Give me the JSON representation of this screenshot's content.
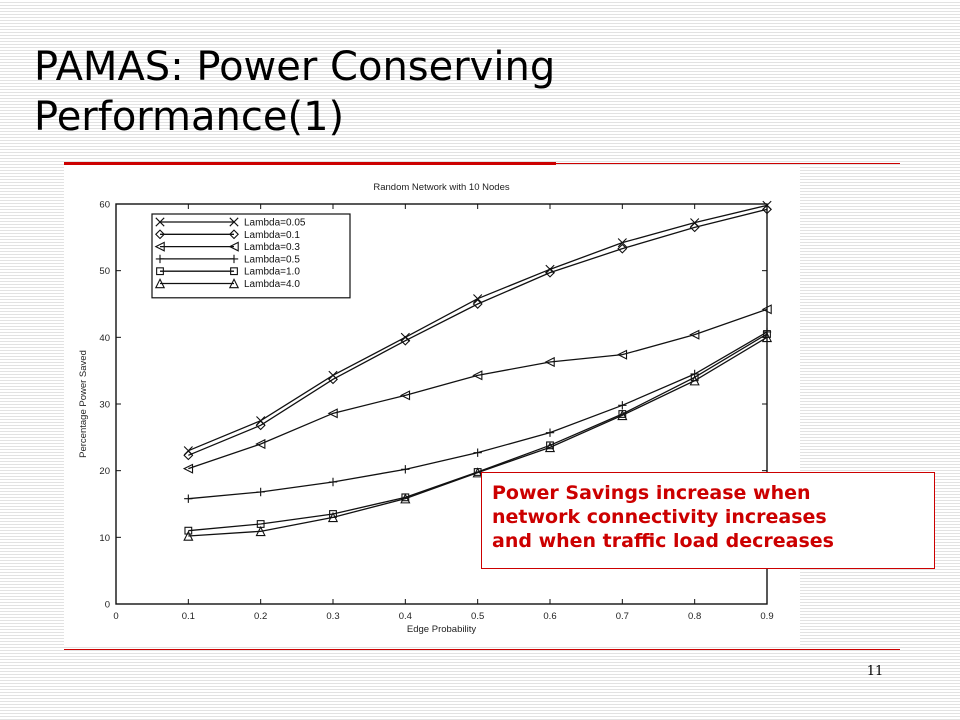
{
  "slide": {
    "title_line1": "PAMAS: Power Conserving",
    "title_line2": "Performance(1)",
    "page_number": "11",
    "callout": {
      "line1": "Power Savings increase when",
      "line2": "network connectivity increases",
      "line3": "and when traffic load decreases",
      "color": "#cc0000"
    },
    "rule_color": "#cc0000"
  },
  "chart_data": {
    "type": "line",
    "title": "Random Network with 10 Nodes",
    "xlabel": "Edge Probability",
    "ylabel": "Percentage Power Saved",
    "xlim": [
      0,
      0.9
    ],
    "ylim": [
      0,
      60
    ],
    "xticks": [
      "0",
      "0.1",
      "0.2",
      "0.3",
      "0.4",
      "0.5",
      "0.6",
      "0.7",
      "0.8",
      "0.9"
    ],
    "yticks": [
      "0",
      "10",
      "20",
      "30",
      "40",
      "50",
      "60"
    ],
    "grid": false,
    "legend_position": "top-left",
    "x": [
      0.1,
      0.2,
      0.3,
      0.4,
      0.5,
      0.6,
      0.7,
      0.8,
      0.9
    ],
    "series": [
      {
        "name": "Lambda=0.05",
        "marker": "x",
        "values": [
          23,
          27.5,
          34.3,
          40,
          45.8,
          50.2,
          54.2,
          57.2,
          59.8
        ]
      },
      {
        "name": "Lambda=0.1",
        "marker": "diamond",
        "values": [
          22.3,
          26.8,
          33.7,
          39.5,
          45,
          49.7,
          53.3,
          56.5,
          59.2
        ]
      },
      {
        "name": "Lambda=0.3",
        "marker": "triangle-left",
        "values": [
          20.3,
          24,
          28.6,
          31.3,
          34.3,
          36.3,
          37.4,
          40.4,
          44.2
        ]
      },
      {
        "name": "Lambda=0.5",
        "marker": "plus",
        "values": [
          15.8,
          16.8,
          18.3,
          20.2,
          22.7,
          25.7,
          29.8,
          34.5,
          40.8
        ]
      },
      {
        "name": "Lambda=1.0",
        "marker": "square",
        "values": [
          11,
          12,
          13.5,
          16,
          19.8,
          23.8,
          28.5,
          34,
          40.5
        ]
      },
      {
        "name": "Lambda=4.0",
        "marker": "triangle-up",
        "values": [
          10.2,
          10.9,
          13,
          15.8,
          19.7,
          23.5,
          28.3,
          33.5,
          40
        ]
      }
    ]
  }
}
